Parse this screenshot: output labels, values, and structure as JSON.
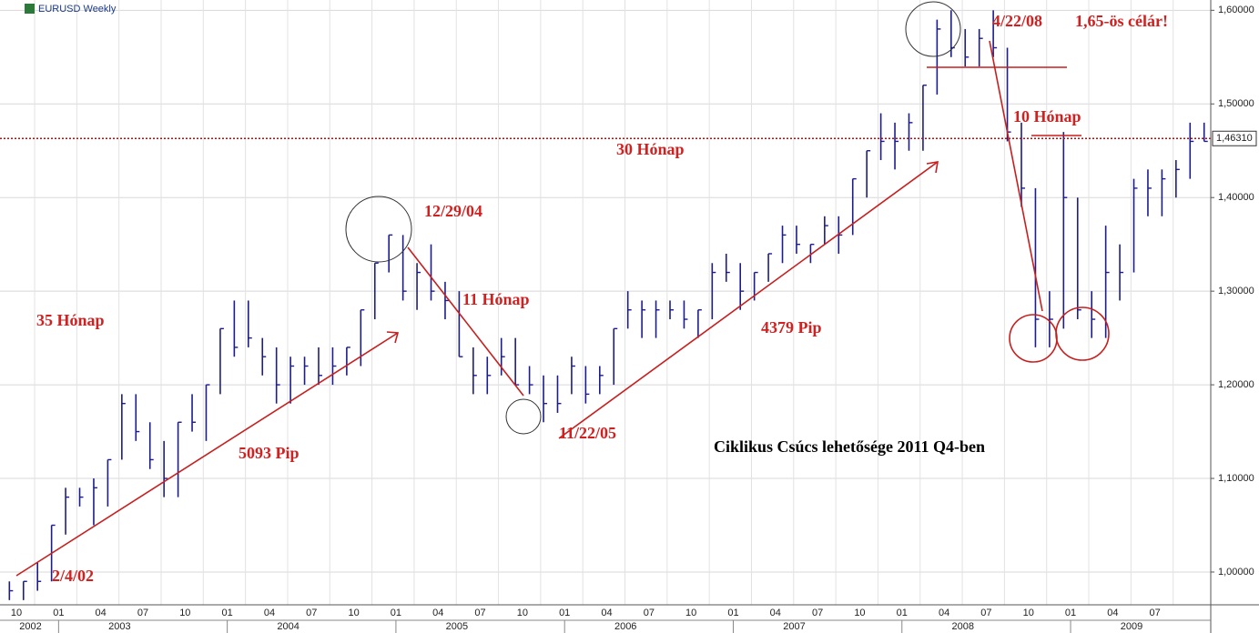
{
  "chart_data": {
    "type": "ohlc",
    "title": "EURUSD Weekly",
    "color": "#1c1c8c",
    "grid": true,
    "categories": [
      "2002-09",
      "2002-10",
      "2002-11",
      "2002-12",
      "2003-01",
      "2003-02",
      "2003-03",
      "2003-04",
      "2003-05",
      "2003-06",
      "2003-07",
      "2003-08",
      "2003-09",
      "2003-10",
      "2003-11",
      "2003-12",
      "2004-01",
      "2004-02",
      "2004-03",
      "2004-04",
      "2004-05",
      "2004-06",
      "2004-07",
      "2004-08",
      "2004-09",
      "2004-10",
      "2004-11",
      "2004-12",
      "2005-01",
      "2005-02",
      "2005-03",
      "2005-04",
      "2005-05",
      "2005-06",
      "2005-07",
      "2005-08",
      "2005-09",
      "2005-10",
      "2005-11",
      "2005-12",
      "2006-01",
      "2006-02",
      "2006-03",
      "2006-04",
      "2006-05",
      "2006-06",
      "2006-07",
      "2006-08",
      "2006-09",
      "2006-10",
      "2006-11",
      "2006-12",
      "2007-01",
      "2007-02",
      "2007-03",
      "2007-04",
      "2007-05",
      "2007-06",
      "2007-07",
      "2007-08",
      "2007-09",
      "2007-10",
      "2007-11",
      "2007-12",
      "2008-01",
      "2008-02",
      "2008-03",
      "2008-04",
      "2008-05",
      "2008-06",
      "2008-07",
      "2008-08",
      "2008-09",
      "2008-10",
      "2008-11",
      "2008-12",
      "2009-01",
      "2009-02",
      "2009-03",
      "2009-04",
      "2009-05",
      "2009-06",
      "2009-07",
      "2009-08",
      "2009-09",
      "2009-10"
    ],
    "high": [
      0.99,
      0.99,
      1.01,
      1.05,
      1.09,
      1.09,
      1.1,
      1.12,
      1.19,
      1.19,
      1.16,
      1.14,
      1.16,
      1.19,
      1.2,
      1.26,
      1.29,
      1.29,
      1.25,
      1.24,
      1.23,
      1.23,
      1.24,
      1.24,
      1.24,
      1.28,
      1.33,
      1.36,
      1.36,
      1.33,
      1.35,
      1.31,
      1.3,
      1.24,
      1.23,
      1.25,
      1.25,
      1.22,
      1.21,
      1.21,
      1.23,
      1.22,
      1.22,
      1.26,
      1.3,
      1.29,
      1.29,
      1.29,
      1.29,
      1.28,
      1.33,
      1.34,
      1.33,
      1.32,
      1.34,
      1.37,
      1.37,
      1.35,
      1.38,
      1.38,
      1.42,
      1.45,
      1.49,
      1.48,
      1.49,
      1.52,
      1.59,
      1.6,
      1.58,
      1.58,
      1.6,
      1.56,
      1.48,
      1.41,
      1.3,
      1.47,
      1.4,
      1.3,
      1.37,
      1.35,
      1.42,
      1.43,
      1.43,
      1.44,
      1.48,
      1.48
    ],
    "low": [
      0.97,
      0.97,
      0.98,
      0.99,
      1.04,
      1.07,
      1.05,
      1.07,
      1.12,
      1.14,
      1.11,
      1.08,
      1.08,
      1.15,
      1.14,
      1.19,
      1.23,
      1.24,
      1.21,
      1.18,
      1.18,
      1.2,
      1.2,
      1.2,
      1.21,
      1.22,
      1.27,
      1.32,
      1.29,
      1.28,
      1.29,
      1.27,
      1.23,
      1.19,
      1.19,
      1.21,
      1.2,
      1.19,
      1.16,
      1.17,
      1.19,
      1.18,
      1.19,
      1.2,
      1.26,
      1.25,
      1.25,
      1.27,
      1.26,
      1.25,
      1.27,
      1.31,
      1.28,
      1.29,
      1.31,
      1.33,
      1.34,
      1.33,
      1.35,
      1.34,
      1.36,
      1.4,
      1.44,
      1.43,
      1.45,
      1.45,
      1.51,
      1.55,
      1.54,
      1.54,
      1.55,
      1.46,
      1.39,
      1.24,
      1.24,
      1.26,
      1.27,
      1.25,
      1.25,
      1.29,
      1.32,
      1.38,
      1.38,
      1.4,
      1.42,
      1.46
    ],
    "close": [
      0.98,
      0.99,
      0.99,
      1.05,
      1.08,
      1.08,
      1.09,
      1.12,
      1.18,
      1.15,
      1.12,
      1.1,
      1.16,
      1.16,
      1.2,
      1.26,
      1.24,
      1.25,
      1.23,
      1.2,
      1.22,
      1.22,
      1.21,
      1.22,
      1.24,
      1.28,
      1.33,
      1.36,
      1.3,
      1.32,
      1.3,
      1.29,
      1.23,
      1.21,
      1.21,
      1.23,
      1.2,
      1.2,
      1.18,
      1.18,
      1.22,
      1.19,
      1.21,
      1.26,
      1.28,
      1.28,
      1.28,
      1.28,
      1.27,
      1.28,
      1.32,
      1.32,
      1.3,
      1.32,
      1.34,
      1.36,
      1.35,
      1.35,
      1.37,
      1.36,
      1.42,
      1.45,
      1.46,
      1.46,
      1.48,
      1.52,
      1.58,
      1.56,
      1.55,
      1.57,
      1.56,
      1.47,
      1.41,
      1.27,
      1.27,
      1.4,
      1.28,
      1.27,
      1.32,
      1.32,
      1.41,
      1.41,
      1.42,
      1.43,
      1.46,
      1.46
    ],
    "ylim": [
      0.965,
      1.611
    ],
    "yticks": [
      {
        "value": 1.0,
        "label": "1,00000"
      },
      {
        "value": 1.1,
        "label": "1,10000"
      },
      {
        "value": 1.2,
        "label": "1,20000"
      },
      {
        "value": 1.3,
        "label": "1,30000"
      },
      {
        "value": 1.4,
        "label": "1,40000"
      },
      {
        "value": 1.5,
        "label": "1,50000"
      },
      {
        "value": 1.6,
        "label": "1,60000"
      }
    ],
    "last_price": {
      "value": 1.4631,
      "label": "1,46310"
    },
    "month_labels": [
      {
        "category": "2002-10",
        "label": "10"
      },
      {
        "category": "2003-01",
        "label": "01"
      },
      {
        "category": "2003-04",
        "label": "04"
      },
      {
        "category": "2003-07",
        "label": "07"
      },
      {
        "category": "2003-10",
        "label": "10"
      },
      {
        "category": "2004-01",
        "label": "01"
      },
      {
        "category": "2004-04",
        "label": "04"
      },
      {
        "category": "2004-07",
        "label": "07"
      },
      {
        "category": "2004-10",
        "label": "10"
      },
      {
        "category": "2005-01",
        "label": "01"
      },
      {
        "category": "2005-04",
        "label": "04"
      },
      {
        "category": "2005-07",
        "label": "07"
      },
      {
        "category": "2005-10",
        "label": "10"
      },
      {
        "category": "2006-01",
        "label": "01"
      },
      {
        "category": "2006-04",
        "label": "04"
      },
      {
        "category": "2006-07",
        "label": "07"
      },
      {
        "category": "2006-10",
        "label": "10"
      },
      {
        "category": "2007-01",
        "label": "01"
      },
      {
        "category": "2007-04",
        "label": "04"
      },
      {
        "category": "2007-07",
        "label": "07"
      },
      {
        "category": "2007-10",
        "label": "10"
      },
      {
        "category": "2008-01",
        "label": "01"
      },
      {
        "category": "2008-04",
        "label": "04"
      },
      {
        "category": "2008-07",
        "label": "07"
      },
      {
        "category": "2008-10",
        "label": "10"
      },
      {
        "category": "2009-01",
        "label": "01"
      },
      {
        "category": "2009-04",
        "label": "04"
      },
      {
        "category": "2009-07",
        "label": "07"
      }
    ],
    "year_labels": [
      "2002",
      "2003",
      "2004",
      "2005",
      "2006",
      "2007",
      "2008",
      "2009"
    ],
    "annotations": [
      "35 Hónap",
      "5093 Pip",
      "2/4/02",
      "12/29/04",
      "11 Hónap",
      "11/22/05",
      "30 Hónap",
      "4379 Pip",
      "4/22/08",
      "1,65-ös célár!",
      "10 Hónap",
      "Ciklikus Csúcs lehetősége 2011 Q4-ben"
    ]
  }
}
